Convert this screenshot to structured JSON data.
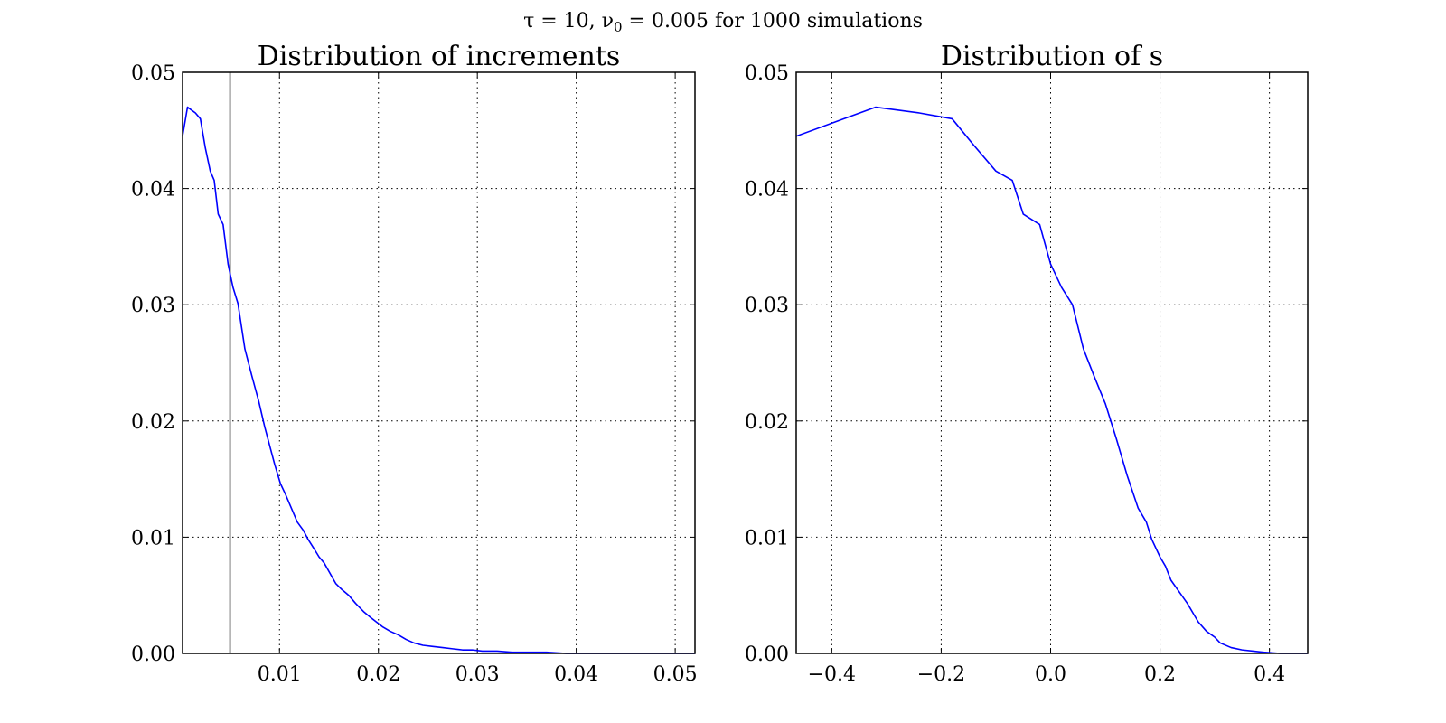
{
  "figure": {
    "suptitle": {
      "prefix": "τ = 10,  ν",
      "subscript": "0",
      "suffix": " = 0.005 for 1000 simulations"
    }
  },
  "colors": {
    "series": "#0000ff",
    "axes": "#000000",
    "background": "#ffffff"
  },
  "chart_data": [
    {
      "type": "line",
      "title": "Distribution of increments",
      "xlabel": "",
      "ylabel": "",
      "xlim": [
        0.0002,
        0.052
      ],
      "ylim": [
        0,
        0.05
      ],
      "xticks": [
        0.01,
        0.02,
        0.03,
        0.04,
        0.05
      ],
      "xtick_labels": [
        "0.01",
        "0.02",
        "0.03",
        "0.04",
        "0.05"
      ],
      "yticks": [
        0,
        0.01,
        0.02,
        0.03,
        0.04,
        0.05
      ],
      "ytick_labels": [
        "0.00",
        "0.01",
        "0.02",
        "0.03",
        "0.04",
        "0.05"
      ],
      "grid": true,
      "vline": 0.005,
      "series": [
        {
          "x": [
            0.0002,
            0.0007,
            0.0015,
            0.002,
            0.0025,
            0.003,
            0.0034,
            0.0038,
            0.0043,
            0.0048,
            0.0053,
            0.0058,
            0.0065,
            0.0072,
            0.0079,
            0.0085,
            0.0095,
            0.0101,
            0.0106,
            0.0113,
            0.0118,
            0.0124,
            0.0129,
            0.0135,
            0.014,
            0.0145,
            0.0151,
            0.0157,
            0.0163,
            0.017,
            0.0177,
            0.0185,
            0.0192,
            0.0198,
            0.0204,
            0.0212,
            0.022,
            0.0228,
            0.0236,
            0.0245,
            0.0255,
            0.0265,
            0.0275,
            0.0285,
            0.0295,
            0.0305,
            0.032,
            0.0335,
            0.035,
            0.037,
            0.039,
            0.041,
            0.044,
            0.047,
            0.05,
            0.052
          ],
          "y": [
            0.0445,
            0.047,
            0.0465,
            0.046,
            0.0435,
            0.0415,
            0.0407,
            0.0378,
            0.0369,
            0.0335,
            0.0315,
            0.0301,
            0.0262,
            0.0239,
            0.0217,
            0.0195,
            0.0163,
            0.0146,
            0.0137,
            0.0123,
            0.0113,
            0.0106,
            0.0098,
            0.009,
            0.0083,
            0.0078,
            0.0069,
            0.006,
            0.0055,
            0.005,
            0.0043,
            0.0036,
            0.0031,
            0.0027,
            0.0023,
            0.0019,
            0.0016,
            0.0012,
            0.0009,
            0.0007,
            0.0006,
            0.0005,
            0.0004,
            0.0003,
            0.0003,
            0.0002,
            0.0002,
            0.0001,
            0.0001,
            0.0001,
            0.0,
            0.0,
            0.0,
            0.0,
            0.0,
            0.0
          ]
        }
      ]
    },
    {
      "type": "line",
      "title": "Distribution of s",
      "xlabel": "",
      "ylabel": "",
      "xlim": [
        -0.465,
        0.47
      ],
      "ylim": [
        0,
        0.05
      ],
      "xticks": [
        -0.4,
        -0.2,
        0.0,
        0.2,
        0.4
      ],
      "xtick_labels": [
        "−0.4",
        "−0.2",
        "0.0",
        "0.2",
        "0.4"
      ],
      "yticks": [
        0,
        0.01,
        0.02,
        0.03,
        0.04,
        0.05
      ],
      "ytick_labels": [
        "0.00",
        "0.01",
        "0.02",
        "0.03",
        "0.04",
        "0.05"
      ],
      "grid": true,
      "series": [
        {
          "x": [
            -0.465,
            -0.32,
            -0.24,
            -0.18,
            -0.14,
            -0.1,
            -0.07,
            -0.05,
            -0.02,
            0.0,
            0.02,
            0.04,
            0.06,
            0.08,
            0.1,
            0.12,
            0.14,
            0.16,
            0.175,
            0.185,
            0.2,
            0.21,
            0.22,
            0.235,
            0.25,
            0.26,
            0.27,
            0.285,
            0.3,
            0.31,
            0.33,
            0.35,
            0.37,
            0.39,
            0.42,
            0.47
          ],
          "y": [
            0.0445,
            0.047,
            0.0465,
            0.046,
            0.0437,
            0.0415,
            0.0407,
            0.0378,
            0.0369,
            0.0335,
            0.0315,
            0.03,
            0.0262,
            0.0238,
            0.0215,
            0.0185,
            0.0153,
            0.0125,
            0.0113,
            0.0098,
            0.0083,
            0.0075,
            0.0063,
            0.0053,
            0.0043,
            0.0035,
            0.0027,
            0.0019,
            0.0014,
            0.0009,
            0.0005,
            0.0003,
            0.0002,
            0.0001,
            0.0,
            0.0
          ]
        }
      ]
    }
  ]
}
